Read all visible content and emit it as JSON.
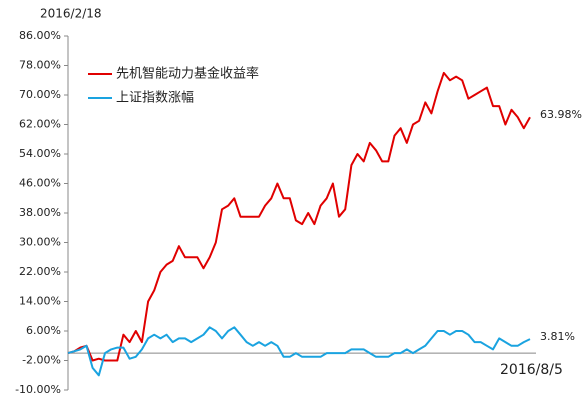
{
  "chart_data": {
    "type": "line",
    "categories": [
      "2016/2/18",
      null,
      null,
      null,
      null,
      null,
      null,
      null,
      null,
      null,
      null,
      null,
      null,
      null,
      null,
      null,
      null,
      null,
      null,
      null,
      null,
      null,
      null,
      null,
      null,
      null,
      null,
      null,
      null,
      null,
      null,
      null,
      null,
      null,
      null,
      null,
      null,
      null,
      null,
      null,
      null,
      null,
      null,
      null,
      null,
      null,
      null,
      null,
      null,
      null,
      null,
      null,
      null,
      null,
      null,
      null,
      null,
      null,
      null,
      null,
      null,
      null,
      null,
      null,
      null,
      null,
      null,
      null,
      null,
      null,
      null,
      null,
      null,
      null,
      null,
      "2016/8/5"
    ],
    "series": [
      {
        "name": "先机智能动力基金收益率",
        "color": "#e00000",
        "values": [
          0,
          0.5,
          1.5,
          2,
          -2,
          -1.5,
          -2,
          -2,
          -2,
          5,
          3,
          6,
          3,
          14,
          17,
          22,
          24,
          25,
          29,
          26,
          26,
          26,
          23,
          26,
          30,
          39,
          40,
          42,
          37,
          37,
          37,
          37,
          40,
          42,
          46,
          42,
          42,
          36,
          35,
          38,
          35,
          40,
          42,
          46,
          37,
          39,
          51,
          54,
          52,
          57,
          55,
          52,
          52,
          59,
          61,
          57,
          62,
          63,
          68,
          65,
          71,
          76,
          74,
          75,
          74,
          69,
          70,
          71,
          72,
          67,
          67,
          62,
          66,
          64,
          61,
          63.98
        ]
      },
      {
        "name": "上证指数涨幅",
        "color": "#1aa3e0",
        "values": [
          0,
          0.5,
          1,
          2,
          -4,
          -6,
          0,
          1,
          1.5,
          1.5,
          -1.5,
          -1,
          1,
          4,
          5,
          4,
          5,
          3,
          4,
          4,
          3,
          4,
          5,
          7,
          6,
          4,
          6,
          7,
          5,
          3,
          2,
          3,
          2,
          3,
          2,
          -1,
          -1,
          0,
          -1,
          -1,
          -1,
          -1,
          0,
          0,
          0,
          0,
          1,
          1,
          1,
          0,
          -1,
          -1,
          -1,
          0,
          0,
          1,
          0,
          1,
          2,
          4,
          6,
          6,
          5,
          6,
          6,
          5,
          3,
          3,
          2,
          1,
          4,
          3,
          2,
          2,
          3,
          3.81
        ]
      }
    ],
    "annotations": [
      "63.98%",
      "3.81%"
    ],
    "ylim": [
      -10,
      86
    ],
    "yticks": [
      {
        "value": -10,
        "label": "-10.00%"
      },
      {
        "value": -2,
        "label": "-2.00%"
      },
      {
        "value": 6,
        "label": "6.00%"
      },
      {
        "value": 14,
        "label": "14.00%"
      },
      {
        "value": 22,
        "label": "22.00%"
      },
      {
        "value": 30,
        "label": "30.00%"
      },
      {
        "value": 38,
        "label": "38.00%"
      },
      {
        "value": 46,
        "label": "46.00%"
      },
      {
        "value": 54,
        "label": "54.00%"
      },
      {
        "value": 62,
        "label": "62.00%"
      },
      {
        "value": 70,
        "label": "70.00%"
      },
      {
        "value": 78,
        "label": "78.00%"
      },
      {
        "value": 86,
        "label": "86.00%"
      }
    ],
    "grid": false
  }
}
